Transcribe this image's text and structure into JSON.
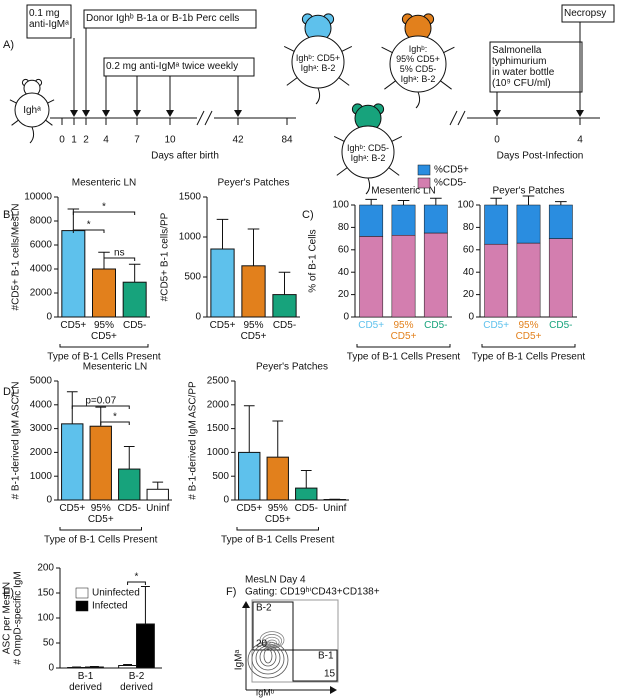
{
  "panel_labels": [
    "A)",
    "B)",
    "C)",
    "D)",
    "E)",
    "F)"
  ],
  "panel_a": {
    "mouse_label": "Ighᵃ",
    "boxes": [
      "0.1 mg\nanti-IgMᵃ",
      "Donor Ighᵇ B-1a or B-1b Perc cells",
      "0.2 mg anti-IgMᵃ twice weekly",
      "Necropsy",
      "Salmonella\ntyphimurium\nin water bottle\n(10⁹ CFU/ml)"
    ],
    "timeline_ticks": [
      "0",
      "1",
      "2",
      "4",
      "7",
      "10",
      "42",
      "84"
    ],
    "timeline_label": "Days after birth",
    "infection_ticks": [
      "0",
      "4"
    ],
    "infection_label": "Days Post-Infection",
    "mice": [
      "Ighᵇ: CD5+\nIghᵃ: B-2",
      "Ighᵇ:\n95% CD5+\n5% CD5-\nIghᵃ: B-2",
      "Ighᵇ: CD5-\nIghᵃ: B-2"
    ]
  },
  "chart_data": [
    {
      "type": "bar",
      "title": "Mesenteric LN",
      "y_label": "#CD5+ B-1 cells/MesLN",
      "x_label": "Type of B-1 Cells Present",
      "categories": [
        "CD5+",
        "95%\nCD5+",
        "CD5-"
      ],
      "values": [
        7200,
        4000,
        2900
      ],
      "errors": [
        1800,
        1400,
        1500
      ],
      "colors": [
        "#5ec1ec",
        "#e2801c",
        "#17a37c"
      ],
      "ylim": [
        0,
        10000
      ],
      "yticks": [
        0,
        2000,
        4000,
        6000,
        8000,
        10000
      ],
      "annotations": [
        "*",
        "*",
        "ns"
      ]
    },
    {
      "type": "bar",
      "title": "Peyer's Patches",
      "y_label": "#CD5+ B-1 cells/PP",
      "categories": [
        "CD5+",
        "95%\nCD5+",
        "CD5-"
      ],
      "values": [
        850,
        640,
        280
      ],
      "errors": [
        370,
        460,
        280
      ],
      "colors": [
        "#5ec1ec",
        "#e2801c",
        "#17a37c"
      ],
      "ylim": [
        0,
        1500
      ],
      "yticks": [
        0,
        500,
        1000,
        1500
      ]
    },
    {
      "type": "bar",
      "stacked": true,
      "legend": true,
      "title": "Mesenteric LN",
      "y_label": "% of B-1 Cells",
      "x_label": "Type of B-1 Cells Present",
      "categories": [
        "CD5+",
        "95%\nCD5+",
        "CD5-"
      ],
      "category_colors": [
        "#5ec1ec",
        "#e2801c",
        "#17a37c"
      ],
      "series": [
        {
          "name": "%CD5+",
          "color": "#2a8de0",
          "values": [
            28,
            27,
            25
          ],
          "errors": [
            5,
            4,
            6
          ]
        },
        {
          "name": "%CD5-",
          "color": "#d37eaf",
          "values": [
            72,
            73,
            75
          ],
          "errors": [
            5,
            2,
            5
          ]
        }
      ],
      "ylim": [
        0,
        100
      ],
      "yticks": [
        0,
        20,
        40,
        60,
        80,
        100
      ]
    },
    {
      "type": "bar",
      "stacked": true,
      "title": "Peyer's Patches",
      "x_label": "Type of B-1 Cells Present",
      "categories": [
        "CD5+",
        "95%\nCD5+",
        "CD5-"
      ],
      "category_colors": [
        "#5ec1ec",
        "#e2801c",
        "#17a37c"
      ],
      "series": [
        {
          "name": "%CD5+",
          "color": "#2a8de0",
          "values": [
            35,
            34,
            30
          ],
          "errors": [
            6,
            8,
            3
          ]
        },
        {
          "name": "%CD5-",
          "color": "#d37eaf",
          "values": [
            65,
            66,
            70
          ],
          "errors": [
            6,
            8,
            2
          ]
        }
      ],
      "ylim": [
        0,
        100
      ],
      "yticks": [
        0,
        20,
        40,
        60,
        80,
        100
      ]
    },
    {
      "type": "bar",
      "title": "Mesenteric LN",
      "y_label": "# B-1-derived IgM ASC/LN",
      "x_label": "Type of B-1 Cells Present",
      "categories": [
        "CD5+",
        "95%\nCD5+",
        "CD5-",
        "Uninf"
      ],
      "values": [
        3200,
        3100,
        1300,
        450
      ],
      "errors": [
        1350,
        800,
        950,
        300
      ],
      "colors": [
        "#5ec1ec",
        "#e2801c",
        "#17a37c",
        "#ffffff"
      ],
      "ylim": [
        0,
        5000
      ],
      "yticks": [
        0,
        1000,
        2000,
        3000,
        4000,
        5000
      ],
      "annotations": [
        "p=0.07",
        "*"
      ]
    },
    {
      "type": "bar",
      "title": "Peyer's Patches",
      "y_label": "# B-1-derived IgM ASC/PP",
      "x_label": "Type of B-1 Cells Present",
      "categories": [
        "CD5+",
        "95%\nCD5+",
        "CD5-",
        "Uninf"
      ],
      "values": [
        1000,
        900,
        250,
        10
      ],
      "errors": [
        980,
        760,
        370,
        5
      ],
      "colors": [
        "#5ec1ec",
        "#e2801c",
        "#17a37c",
        "#ffffff"
      ],
      "ylim": [
        0,
        2500
      ],
      "yticks": [
        0,
        500,
        1000,
        1500,
        2000,
        2500
      ]
    },
    {
      "type": "bar",
      "legend": true,
      "y_label": [
        "# OmpD-specific IgM",
        "ASC per MesLN"
      ],
      "categories": [
        "B-1\nderived",
        "B-2\nderived"
      ],
      "series": [
        {
          "name": "Uninfected",
          "color": "#ffffff",
          "values": [
            1,
            5
          ],
          "errors": [
            1,
            2
          ]
        },
        {
          "name": "Infected",
          "color": "#000000",
          "values": [
            2,
            88
          ],
          "errors": [
            1,
            75
          ]
        }
      ],
      "ylim": [
        0,
        200
      ],
      "yticks": [
        0,
        50,
        100,
        150,
        200
      ],
      "annotations": [
        "*"
      ]
    }
  ],
  "panel_f": {
    "title": "MesLN Day 4",
    "gating": "Gating: CD19ʰⁱCD43+CD138+",
    "gates": [
      "B-2",
      "B-1"
    ],
    "percentages": [
      20,
      15
    ],
    "y_axis": "IgMᵃ",
    "x_axis": "IgMᵇ"
  }
}
